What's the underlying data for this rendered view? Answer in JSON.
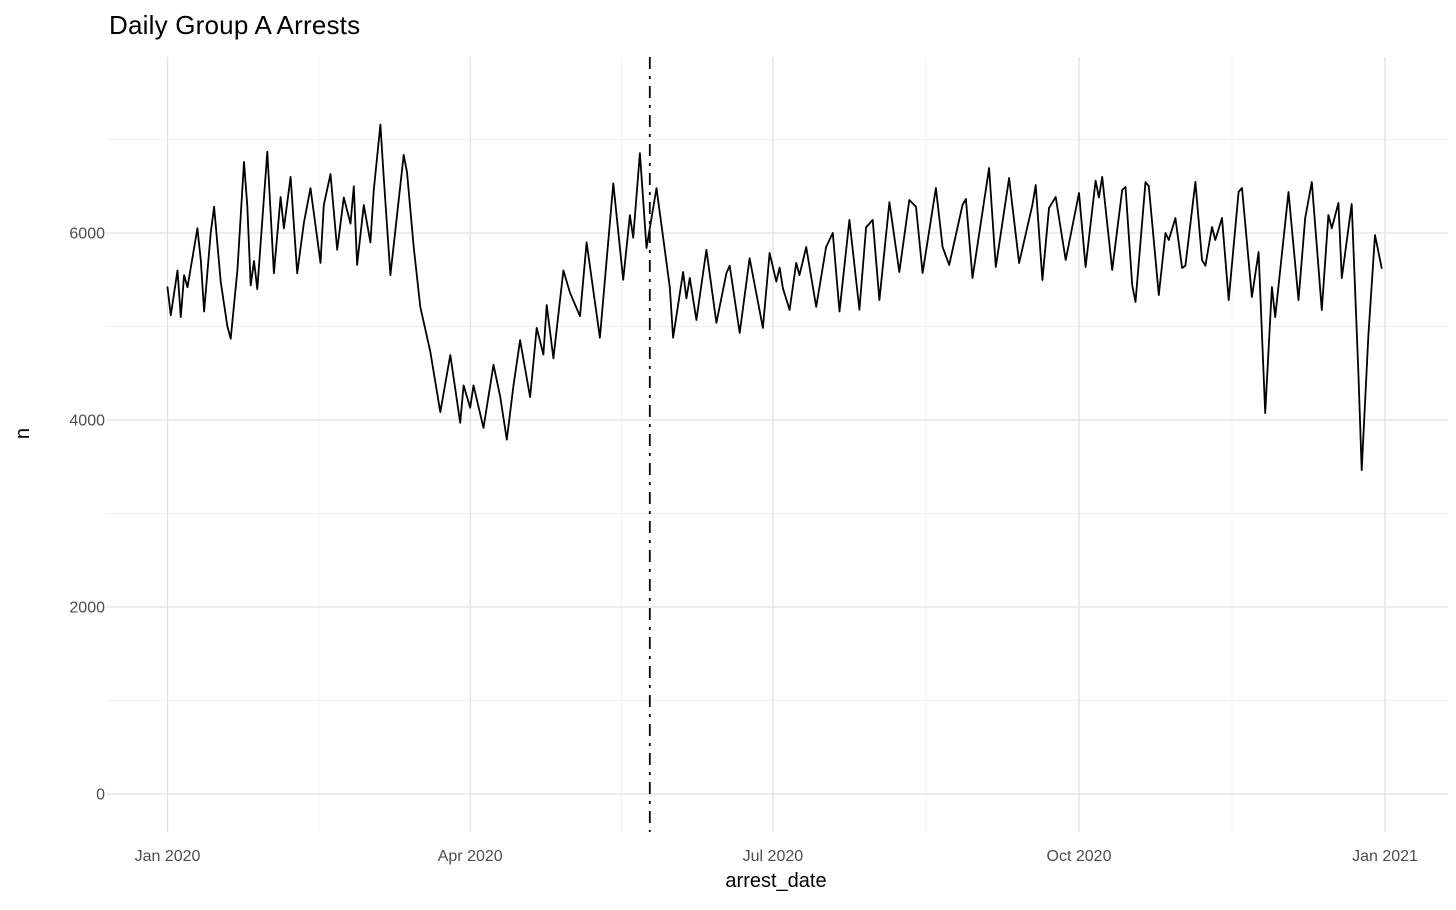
{
  "page": {
    "background": "#FFFFFF"
  },
  "chart_data": {
    "type": "line",
    "title": "Daily Group A Arrests",
    "xlabel": "arrest_date",
    "ylabel": "n",
    "x_axis": {
      "tick_labels": [
        "Jan 2020",
        "Apr 2020",
        "Jul 2020",
        "Oct 2020",
        "Jan 2021"
      ],
      "tick_days": [
        1,
        92,
        183,
        275,
        367
      ],
      "minor_days": [
        46.5,
        137.5,
        229,
        321
      ],
      "range_days": [
        -17,
        386
      ]
    },
    "y_axis": {
      "tick_values": [
        0,
        2000,
        4000,
        6000
      ],
      "minor_values": [
        1000,
        3000,
        5000,
        7000
      ],
      "range": [
        -405,
        7880
      ]
    },
    "grid": {
      "show": "major+minor",
      "major_color": "#E2E2E2",
      "minor_color": "#EFEFEF"
    },
    "line": {
      "color": "#000000",
      "width": 1.8
    },
    "vline": {
      "day": 146,
      "approx_date": "2020-05-25",
      "style": "dash-dot",
      "color": "#000000"
    },
    "legend": "none",
    "series": [
      {
        "name": "n",
        "points_day_value": [
          [
            1,
            5420
          ],
          [
            2,
            5120
          ],
          [
            4,
            5600
          ],
          [
            5,
            5100
          ],
          [
            6,
            5550
          ],
          [
            7,
            5420
          ],
          [
            10,
            6050
          ],
          [
            11,
            5710
          ],
          [
            12,
            5160
          ],
          [
            14,
            6000
          ],
          [
            15,
            6280
          ],
          [
            17,
            5480
          ],
          [
            19,
            5000
          ],
          [
            20,
            4870
          ],
          [
            22,
            5600
          ],
          [
            24,
            6760
          ],
          [
            25,
            6290
          ],
          [
            26,
            5440
          ],
          [
            27,
            5700
          ],
          [
            28,
            5400
          ],
          [
            31,
            6870
          ],
          [
            33,
            5570
          ],
          [
            35,
            6385
          ],
          [
            36,
            6050
          ],
          [
            38,
            6600
          ],
          [
            40,
            5570
          ],
          [
            42,
            6110
          ],
          [
            44,
            6480
          ],
          [
            47,
            5680
          ],
          [
            48,
            6300
          ],
          [
            50,
            6630
          ],
          [
            52,
            5820
          ],
          [
            54,
            6380
          ],
          [
            56,
            6100
          ],
          [
            57,
            6500
          ],
          [
            58,
            5660
          ],
          [
            60,
            6300
          ],
          [
            62,
            5900
          ],
          [
            63,
            6450
          ],
          [
            65,
            7160
          ],
          [
            66,
            6600
          ],
          [
            68,
            5550
          ],
          [
            72,
            6835
          ],
          [
            73,
            6650
          ],
          [
            75,
            5850
          ],
          [
            77,
            5210
          ],
          [
            80,
            4730
          ],
          [
            83,
            4085
          ],
          [
            86,
            4695
          ],
          [
            89,
            3970
          ],
          [
            90,
            4370
          ],
          [
            92,
            4130
          ],
          [
            93,
            4370
          ],
          [
            96,
            3915
          ],
          [
            99,
            4590
          ],
          [
            101,
            4250
          ],
          [
            103,
            3790
          ],
          [
            105,
            4370
          ],
          [
            107,
            4855
          ],
          [
            110,
            4245
          ],
          [
            112,
            4985
          ],
          [
            114,
            4700
          ],
          [
            115,
            5230
          ],
          [
            117,
            4660
          ],
          [
            120,
            5600
          ],
          [
            122,
            5360
          ],
          [
            125,
            5110
          ],
          [
            127,
            5900
          ],
          [
            131,
            4880
          ],
          [
            135,
            6530
          ],
          [
            138,
            5500
          ],
          [
            140,
            6190
          ],
          [
            141,
            5950
          ],
          [
            143,
            6855
          ],
          [
            145,
            5840
          ],
          [
            148,
            6480
          ],
          [
            152,
            5420
          ],
          [
            153,
            4880
          ],
          [
            156,
            5583
          ],
          [
            157,
            5300
          ],
          [
            158,
            5520
          ],
          [
            160,
            5070
          ],
          [
            163,
            5820
          ],
          [
            166,
            5040
          ],
          [
            169,
            5570
          ],
          [
            170,
            5650
          ],
          [
            173,
            4930
          ],
          [
            176,
            5730
          ],
          [
            180,
            4985
          ],
          [
            182,
            5786
          ],
          [
            184,
            5480
          ],
          [
            185,
            5630
          ],
          [
            186,
            5410
          ],
          [
            188,
            5176
          ],
          [
            190,
            5680
          ],
          [
            191,
            5550
          ],
          [
            193,
            5850
          ],
          [
            196,
            5210
          ],
          [
            199,
            5850
          ],
          [
            201,
            6000
          ],
          [
            203,
            5160
          ],
          [
            206,
            6140
          ],
          [
            209,
            5180
          ],
          [
            211,
            6060
          ],
          [
            213,
            6140
          ],
          [
            215,
            5283
          ],
          [
            218,
            6330
          ],
          [
            221,
            5583
          ],
          [
            224,
            6353
          ],
          [
            226,
            6280
          ],
          [
            228,
            5572
          ],
          [
            232,
            6481
          ],
          [
            234,
            5850
          ],
          [
            236,
            5658
          ],
          [
            240,
            6300
          ],
          [
            241,
            6364
          ],
          [
            243,
            5518
          ],
          [
            248,
            6695
          ],
          [
            250,
            5636
          ],
          [
            254,
            6588
          ],
          [
            257,
            5679
          ],
          [
            261,
            6300
          ],
          [
            262,
            6513
          ],
          [
            264,
            5497
          ],
          [
            266,
            6267
          ],
          [
            268,
            6385
          ],
          [
            271,
            5711
          ],
          [
            275,
            6428
          ],
          [
            277,
            5636
          ],
          [
            280,
            6560
          ],
          [
            281,
            6380
          ],
          [
            282,
            6600
          ],
          [
            285,
            5604
          ],
          [
            288,
            6460
          ],
          [
            289,
            6492
          ],
          [
            291,
            5443
          ],
          [
            292,
            5262
          ],
          [
            295,
            6545
          ],
          [
            296,
            6500
          ],
          [
            299,
            5337
          ],
          [
            301,
            6000
          ],
          [
            302,
            5925
          ],
          [
            304,
            6160
          ],
          [
            306,
            5626
          ],
          [
            307,
            5650
          ],
          [
            310,
            6546
          ],
          [
            312,
            5711
          ],
          [
            313,
            5650
          ],
          [
            315,
            6064
          ],
          [
            316,
            5925
          ],
          [
            318,
            6160
          ],
          [
            320,
            5283
          ],
          [
            323,
            6440
          ],
          [
            324,
            6481
          ],
          [
            327,
            5315
          ],
          [
            329,
            5797
          ],
          [
            331,
            4074
          ],
          [
            333,
            5422
          ],
          [
            334,
            5101
          ],
          [
            338,
            6438
          ],
          [
            341,
            5283
          ],
          [
            343,
            6160
          ],
          [
            345,
            6545
          ],
          [
            348,
            5176
          ],
          [
            350,
            6192
          ],
          [
            351,
            6050
          ],
          [
            353,
            6321
          ],
          [
            354,
            5518
          ],
          [
            357,
            6310
          ],
          [
            359,
            4500
          ],
          [
            360,
            3464
          ],
          [
            362,
            4908
          ],
          [
            364,
            5978
          ],
          [
            366,
            5625
          ]
        ]
      }
    ]
  }
}
